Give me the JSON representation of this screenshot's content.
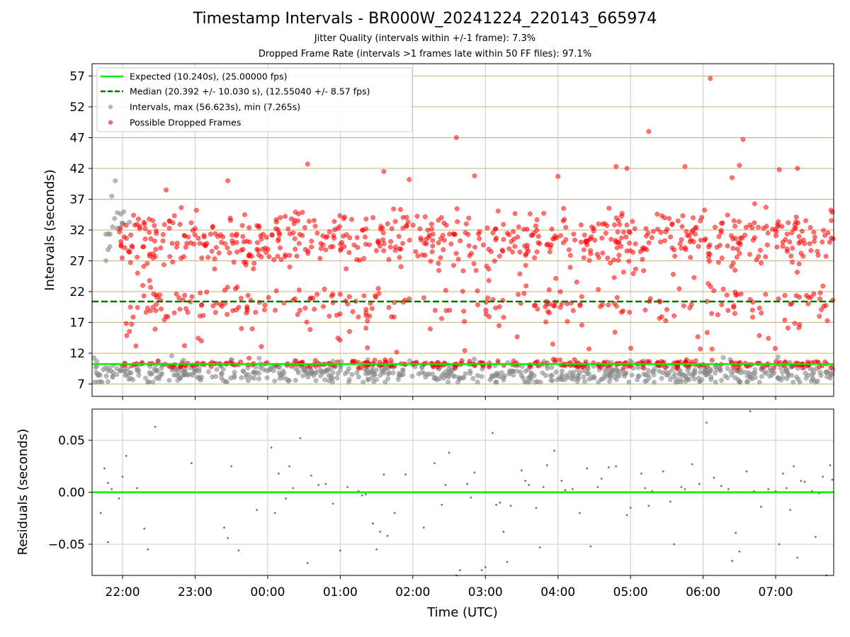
{
  "title": "Timestamp Intervals - BR000W_20241224_220143_665974",
  "subtitle1": "Jitter Quality (intervals within +/-1 frame): 7.3%",
  "subtitle2": "Dropped Frame Rate (intervals >1 frames late within 50 FF files): 97.1%",
  "colors": {
    "expected": "#00ee00",
    "median": "#007700",
    "intervals": "#888888",
    "dropped": "#ff0000",
    "hgrid": "#c8b070",
    "vgrid": "#cccccc",
    "residuals": "#707070"
  },
  "chart_data": [
    {
      "type": "scatter",
      "ylabel": "Intervals (seconds)",
      "xlim_hours": [
        21.58,
        31.8
      ],
      "ylim": [
        5,
        59
      ],
      "yticks": [
        7,
        12,
        17,
        22,
        27,
        32,
        37,
        42,
        47,
        52,
        57
      ],
      "yticklabels": [
        "7",
        "12",
        "17",
        "22",
        "27",
        "32",
        "37",
        "42",
        "47",
        "52",
        "57"
      ],
      "legend": {
        "position": "top-left",
        "entries": [
          "Expected (10.240s), (25.00000 fps)",
          "Median (20.392 +/- 10.030 s), (12.55040 +/- 8.57 fps)",
          "Intervals, max (56.623s), min (7.265s)",
          "Possible Dropped Frames"
        ]
      },
      "expected_value": 10.24,
      "median_value": 20.392,
      "intervals_range": [
        7.265,
        56.623
      ],
      "notable_points": [
        {
          "x": 21.9,
          "y": 40.0,
          "series": "intervals"
        },
        {
          "x": 21.85,
          "y": 37.5,
          "series": "intervals"
        },
        {
          "x": 22.6,
          "y": 38.5,
          "series": "dropped"
        },
        {
          "x": 23.45,
          "y": 40.0,
          "series": "dropped"
        },
        {
          "x": 24.55,
          "y": 42.7,
          "series": "dropped"
        },
        {
          "x": 25.6,
          "y": 41.5,
          "series": "dropped"
        },
        {
          "x": 25.95,
          "y": 40.2,
          "series": "dropped"
        },
        {
          "x": 26.6,
          "y": 47.0,
          "series": "dropped"
        },
        {
          "x": 26.85,
          "y": 40.8,
          "series": "dropped"
        },
        {
          "x": 28.0,
          "y": 40.7,
          "series": "dropped"
        },
        {
          "x": 28.8,
          "y": 42.3,
          "series": "dropped"
        },
        {
          "x": 28.95,
          "y": 42.0,
          "series": "dropped"
        },
        {
          "x": 29.25,
          "y": 48.0,
          "series": "dropped"
        },
        {
          "x": 29.75,
          "y": 42.3,
          "series": "dropped"
        },
        {
          "x": 30.1,
          "y": 56.6,
          "series": "dropped"
        },
        {
          "x": 30.4,
          "y": 40.5,
          "series": "dropped"
        },
        {
          "x": 30.5,
          "y": 42.5,
          "series": "dropped"
        },
        {
          "x": 30.55,
          "y": 46.7,
          "series": "dropped"
        },
        {
          "x": 31.05,
          "y": 41.8,
          "series": "dropped"
        },
        {
          "x": 31.3,
          "y": 42.0,
          "series": "dropped"
        },
        {
          "x": 30.5,
          "y": 7.3,
          "series": "intervals"
        }
      ]
    },
    {
      "type": "scatter",
      "ylabel": "Residuals (seconds)",
      "xlabel": "Time (UTC)",
      "xlim_hours": [
        21.58,
        31.8
      ],
      "ylim": [
        -0.08,
        0.08
      ],
      "yticks": [
        -0.05,
        0.0,
        0.05
      ],
      "yticklabels": [
        "−0.05",
        "0.00",
        "0.05"
      ],
      "xticks_hours": [
        22,
        23,
        24,
        25,
        26,
        27,
        28,
        29,
        30,
        31
      ],
      "xticklabels": [
        "22:00",
        "23:00",
        "00:00",
        "01:00",
        "02:00",
        "03:00",
        "04:00",
        "05:00",
        "06:00",
        "07:00"
      ],
      "zero_line": 0.0,
      "residual_points": [
        [
          21.7,
          -0.02
        ],
        [
          21.75,
          0.023
        ],
        [
          21.8,
          -0.048
        ],
        [
          21.8,
          0.009
        ],
        [
          21.85,
          0.003
        ],
        [
          21.95,
          -0.006
        ],
        [
          22.0,
          0.015
        ],
        [
          22.05,
          0.035
        ],
        [
          22.2,
          0.004
        ],
        [
          22.3,
          -0.035
        ],
        [
          22.35,
          -0.055
        ],
        [
          22.45,
          0.063
        ],
        [
          22.95,
          0.028
        ],
        [
          23.4,
          -0.034
        ],
        [
          23.45,
          -0.044
        ],
        [
          23.5,
          0.025
        ],
        [
          23.6,
          -0.056
        ],
        [
          23.85,
          -0.017
        ],
        [
          24.05,
          0.043
        ],
        [
          24.1,
          -0.02
        ],
        [
          24.15,
          0.018
        ],
        [
          24.25,
          -0.006
        ],
        [
          24.3,
          0.025
        ],
        [
          24.35,
          0.004
        ],
        [
          24.45,
          0.052
        ],
        [
          24.55,
          -0.068
        ],
        [
          24.6,
          0.016
        ],
        [
          24.7,
          0.007
        ],
        [
          24.8,
          0.008
        ],
        [
          24.9,
          -0.011
        ],
        [
          25.0,
          -0.056
        ],
        [
          25.1,
          0.005
        ],
        [
          25.25,
          0.001
        ],
        [
          25.3,
          -0.003
        ],
        [
          25.35,
          -0.002
        ],
        [
          25.45,
          -0.03
        ],
        [
          25.5,
          -0.055
        ],
        [
          25.55,
          -0.038
        ],
        [
          25.6,
          0.017
        ],
        [
          25.65,
          -0.042
        ],
        [
          25.75,
          -0.02
        ],
        [
          25.9,
          0.017
        ],
        [
          26.15,
          -0.034
        ],
        [
          26.3,
          0.028
        ],
        [
          26.4,
          -0.012
        ],
        [
          26.45,
          0.007
        ],
        [
          26.5,
          0.038
        ],
        [
          26.6,
          -0.08
        ],
        [
          26.65,
          -0.075
        ],
        [
          26.75,
          0.008
        ],
        [
          26.8,
          -0.005
        ],
        [
          26.85,
          0.019
        ],
        [
          26.95,
          -0.075
        ],
        [
          27.0,
          -0.072
        ],
        [
          27.1,
          0.057
        ],
        [
          27.15,
          -0.012
        ],
        [
          27.2,
          -0.01
        ],
        [
          27.25,
          -0.038
        ],
        [
          27.3,
          -0.067
        ],
        [
          27.35,
          -0.013
        ],
        [
          27.5,
          0.021
        ],
        [
          27.55,
          0.011
        ],
        [
          27.6,
          0.007
        ],
        [
          27.7,
          -0.015
        ],
        [
          27.75,
          -0.053
        ],
        [
          27.8,
          0.005
        ],
        [
          27.85,
          0.026
        ],
        [
          27.95,
          0.04
        ],
        [
          28.05,
          0.011
        ],
        [
          28.1,
          0.002
        ],
        [
          28.2,
          0.003
        ],
        [
          28.3,
          -0.02
        ],
        [
          28.4,
          0.023
        ],
        [
          28.45,
          -0.052
        ],
        [
          28.55,
          0.005
        ],
        [
          28.6,
          0.013
        ],
        [
          28.7,
          0.024
        ],
        [
          28.8,
          0.025
        ],
        [
          28.95,
          -0.022
        ],
        [
          29.0,
          -0.015
        ],
        [
          29.15,
          0.018
        ],
        [
          29.2,
          0.004
        ],
        [
          29.25,
          -0.013
        ],
        [
          29.3,
          0.001
        ],
        [
          29.45,
          0.02
        ],
        [
          29.55,
          -0.009
        ],
        [
          29.6,
          -0.05
        ],
        [
          29.7,
          0.005
        ],
        [
          29.75,
          0.003
        ],
        [
          29.85,
          0.027
        ],
        [
          29.95,
          0.008
        ],
        [
          30.05,
          0.067
        ],
        [
          30.15,
          0.014
        ],
        [
          30.25,
          0.006
        ],
        [
          30.35,
          0.003
        ],
        [
          30.4,
          -0.066
        ],
        [
          30.45,
          -0.039
        ],
        [
          30.5,
          -0.057
        ],
        [
          30.6,
          0.02
        ],
        [
          30.65,
          0.078
        ],
        [
          30.7,
          0.001
        ],
        [
          30.8,
          -0.014
        ],
        [
          30.9,
          0.003
        ],
        [
          31.0,
          0.001
        ],
        [
          31.05,
          -0.05
        ],
        [
          31.1,
          0.018
        ],
        [
          31.15,
          0.004
        ],
        [
          31.2,
          -0.017
        ],
        [
          31.25,
          0.025
        ],
        [
          31.3,
          -0.063
        ],
        [
          31.35,
          0.011
        ],
        [
          31.4,
          0.01
        ],
        [
          31.5,
          0.001
        ],
        [
          31.55,
          -0.043
        ],
        [
          31.6,
          -0.001
        ],
        [
          31.65,
          0.015
        ],
        [
          31.7,
          -0.08
        ],
        [
          31.75,
          0.026
        ],
        [
          31.78,
          0.012
        ]
      ]
    }
  ]
}
